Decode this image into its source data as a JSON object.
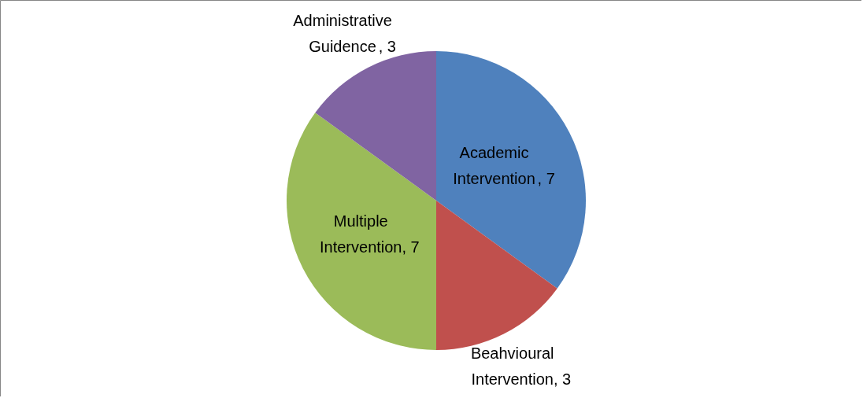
{
  "chart_data": {
    "type": "pie",
    "categories": [
      "Academic Intervention ",
      "Beahvioural Intervention",
      "Multiple Intervention",
      "Administrative Guidence "
    ],
    "values": [
      7,
      3,
      7,
      3
    ],
    "colors": [
      "#4f81bd",
      "#c0504d",
      "#9bbb59",
      "#8064a2"
    ],
    "value_labels": [
      ", 7",
      ", 3",
      ", 7",
      ", 3"
    ]
  }
}
